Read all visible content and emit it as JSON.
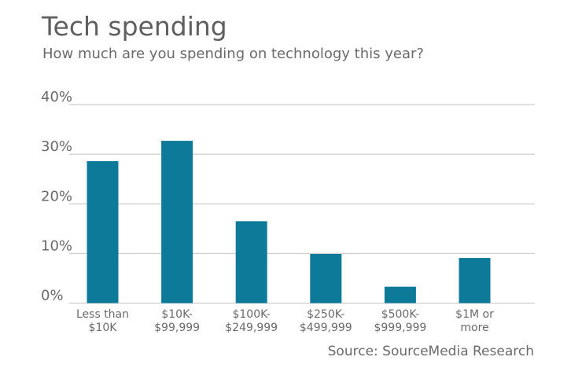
{
  "chart_data": {
    "type": "bar",
    "title": "Tech spending",
    "subtitle": "How much are you spending on technology this year?",
    "source": "Source: SourceMedia Research",
    "categories": [
      [
        "Less than",
        "$10K"
      ],
      [
        "$10K-",
        "$99,999"
      ],
      [
        "$100K-",
        "$249,999"
      ],
      [
        "$250K-",
        "$499,999"
      ],
      [
        "$500K-",
        "$999,999"
      ],
      [
        "$1M or",
        "more"
      ]
    ],
    "values": [
      28.6,
      32.7,
      16.5,
      9.9,
      3.3,
      9.1
    ],
    "ylim": [
      0,
      40
    ],
    "yticks": [
      0,
      10,
      20,
      30,
      40
    ],
    "ytick_labels": [
      "0%",
      "10%",
      "20%",
      "30%",
      "40%"
    ],
    "grid": true,
    "bar_color": "#0e7a99",
    "grid_color": "#cfcfcf"
  }
}
